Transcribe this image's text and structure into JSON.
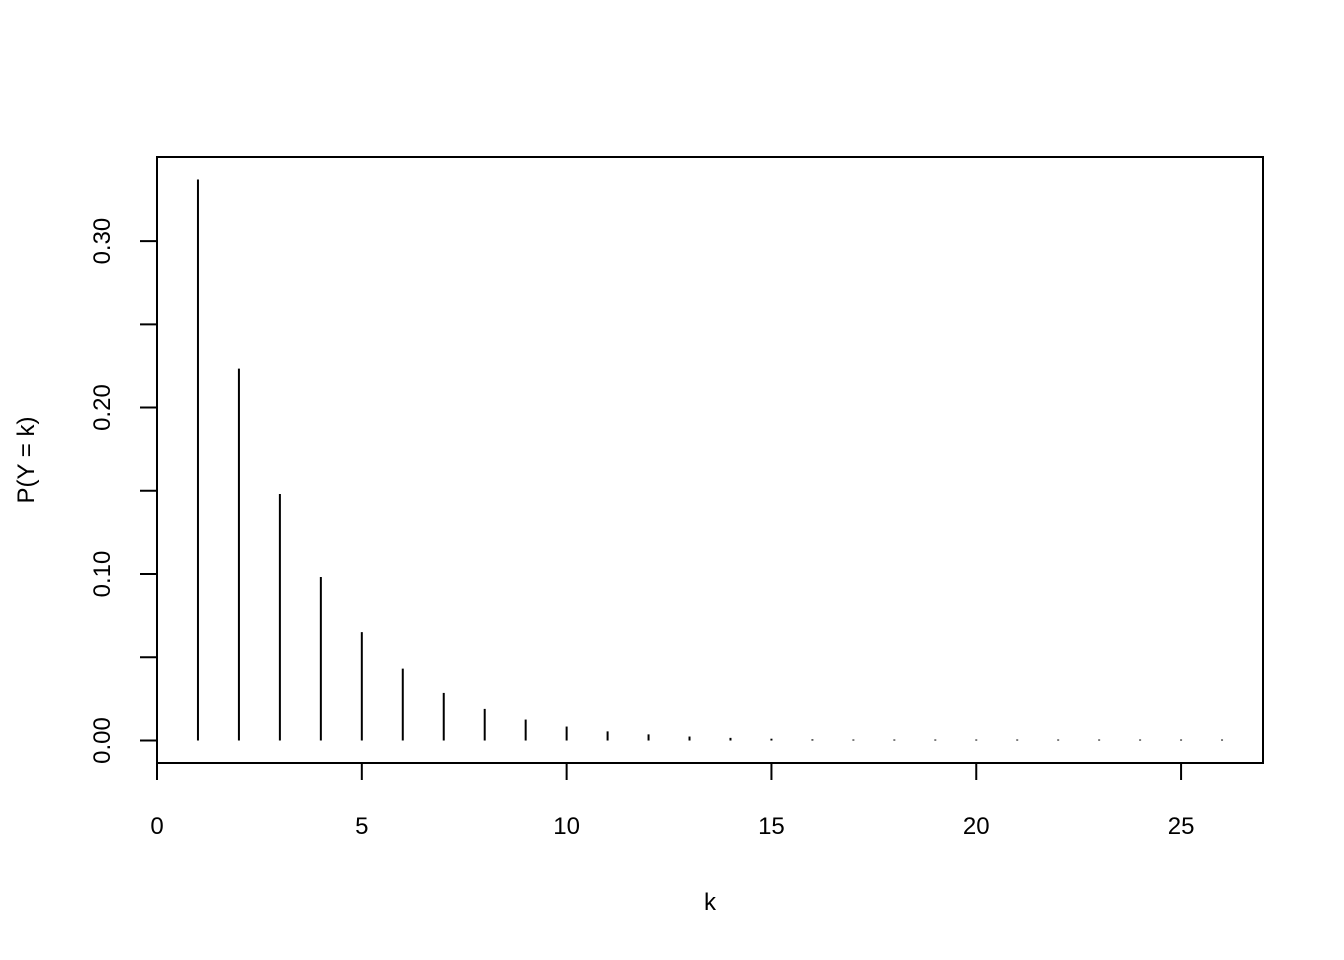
{
  "chart_data": {
    "type": "bar",
    "style": "vertical lines (histogram-like spikes)",
    "title": "",
    "xlabel": "k",
    "ylabel": "P(Y = k)",
    "xlim": [
      0,
      27
    ],
    "ylim": [
      -0.0135,
      0.3505
    ],
    "xticks": [
      0,
      5,
      10,
      15,
      20,
      25
    ],
    "xtick_labels": [
      "0",
      "5",
      "10",
      "15",
      "20",
      "25"
    ],
    "yticks": [
      0,
      0.05,
      0.1,
      0.15,
      0.2,
      0.25,
      0.3
    ],
    "ytick_labels": [
      "0.00",
      "",
      "0.10",
      "",
      "0.20",
      "",
      "0.30"
    ],
    "grid": false,
    "color": "#000000",
    "x": [
      1,
      2,
      3,
      4,
      5,
      6,
      7,
      8,
      9,
      10,
      11,
      12,
      13,
      14,
      15,
      16,
      17,
      18,
      19,
      20,
      21,
      22,
      23,
      24,
      25,
      26
    ],
    "values": [
      0.337,
      0.2234,
      0.1481,
      0.0982,
      0.0651,
      0.0432,
      0.0286,
      0.019,
      0.0126,
      0.0084,
      0.0055,
      0.0037,
      0.0024,
      0.0016,
      0.0011,
      0.0007,
      0.0005,
      0.0003,
      0.0002,
      0.00014,
      9e-05,
      6e-05,
      4e-05,
      3e-05,
      2e-05,
      1e-05
    ]
  }
}
